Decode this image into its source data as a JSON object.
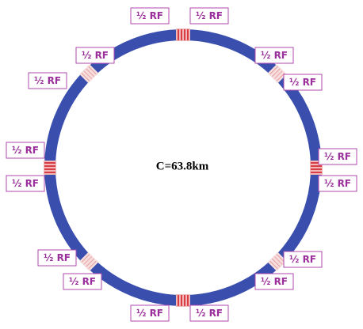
{
  "labels": [
    "½ RF",
    "½ RF",
    "½ RF",
    "½ RF",
    "½ RF",
    "½ RF",
    "½ RF",
    "½ RF",
    "½ RF",
    "½ RF",
    "½ RF",
    "½ RF",
    "½ RF",
    "½ RF",
    "½ RF",
    "½ RF"
  ],
  "circumference_label": "C=63.8km"
}
